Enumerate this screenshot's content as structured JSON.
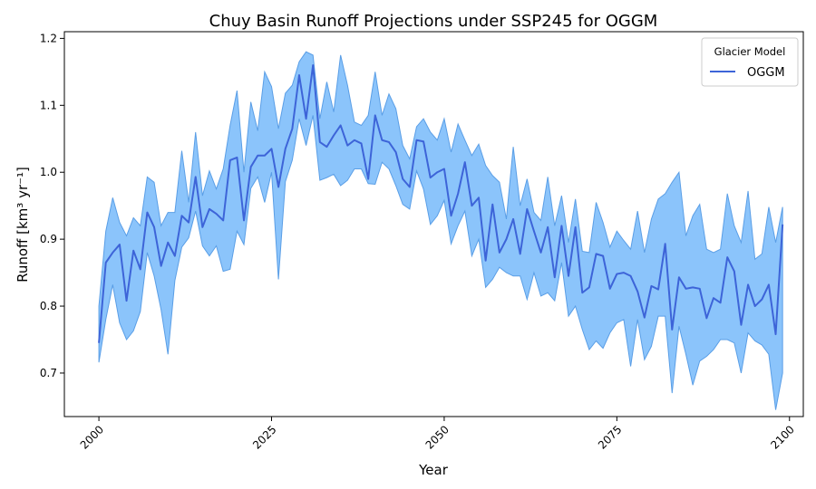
{
  "chart_data": {
    "type": "area",
    "title": "Chuy Basin Runoff Projections under SSP245 for OGGM",
    "xlabel": "Year",
    "ylabel": "Runoff [km³ yr⁻¹]",
    "xlim": [
      1995,
      2102
    ],
    "ylim": [
      0.635,
      1.21
    ],
    "xticks": [
      2000,
      2025,
      2050,
      2075,
      2100
    ],
    "yticks": [
      0.7,
      0.8,
      0.9,
      1.0,
      1.1,
      1.2
    ],
    "ytick_labels": [
      "0.7",
      "0.8",
      "0.9",
      "1.0",
      "1.1",
      "1.2"
    ],
    "grid": false,
    "legend": {
      "title": "Glacier Model",
      "position": "top-right"
    },
    "colors": {
      "line": "#3d64d8",
      "band": "#8bc4fb",
      "band_edge": "#5a9ee6"
    },
    "x": [
      2000,
      2001,
      2002,
      2003,
      2004,
      2005,
      2006,
      2007,
      2008,
      2009,
      2010,
      2011,
      2012,
      2013,
      2014,
      2015,
      2016,
      2017,
      2018,
      2019,
      2020,
      2021,
      2022,
      2023,
      2024,
      2025,
      2026,
      2027,
      2028,
      2029,
      2030,
      2031,
      2032,
      2033,
      2034,
      2035,
      2036,
      2037,
      2038,
      2039,
      2040,
      2041,
      2042,
      2043,
      2044,
      2045,
      2046,
      2047,
      2048,
      2049,
      2050,
      2051,
      2052,
      2053,
      2054,
      2055,
      2056,
      2057,
      2058,
      2059,
      2060,
      2061,
      2062,
      2063,
      2064,
      2065,
      2066,
      2067,
      2068,
      2069,
      2070,
      2071,
      2072,
      2073,
      2074,
      2075,
      2076,
      2077,
      2078,
      2079,
      2080,
      2081,
      2082,
      2083,
      2084,
      2085,
      2086,
      2087,
      2088,
      2089,
      2090,
      2091,
      2092,
      2093,
      2094,
      2095,
      2096,
      2097,
      2098,
      2099
    ],
    "series": [
      {
        "name": "OGGM",
        "values": [
          0.745,
          0.865,
          0.88,
          0.892,
          0.808,
          0.883,
          0.855,
          0.94,
          0.918,
          0.86,
          0.895,
          0.875,
          0.935,
          0.925,
          0.993,
          0.918,
          0.945,
          0.938,
          0.928,
          1.018,
          1.022,
          0.928,
          1.008,
          1.025,
          1.025,
          1.035,
          0.978,
          1.035,
          1.065,
          1.145,
          1.08,
          1.16,
          1.045,
          1.038,
          1.055,
          1.07,
          1.04,
          1.048,
          1.043,
          0.99,
          1.085,
          1.048,
          1.045,
          1.03,
          0.99,
          0.978,
          1.048,
          1.046,
          0.992,
          1.0,
          1.005,
          0.935,
          0.968,
          1.015,
          0.95,
          0.962,
          0.868,
          0.952,
          0.88,
          0.9,
          0.93,
          0.878,
          0.945,
          0.912,
          0.88,
          0.918,
          0.843,
          0.92,
          0.845,
          0.918,
          0.82,
          0.828,
          0.878,
          0.875,
          0.826,
          0.848,
          0.85,
          0.845,
          0.822,
          0.783,
          0.83,
          0.825,
          0.893,
          0.765,
          0.843,
          0.826,
          0.828,
          0.826,
          0.782,
          0.812,
          0.805,
          0.873,
          0.852,
          0.772,
          0.832,
          0.8,
          0.81,
          0.832,
          0.758,
          0.922
        ]
      }
    ],
    "band": {
      "lower": [
        0.716,
        0.78,
        0.832,
        0.775,
        0.75,
        0.763,
        0.792,
        0.88,
        0.845,
        0.795,
        0.728,
        0.838,
        0.888,
        0.902,
        0.942,
        0.89,
        0.875,
        0.89,
        0.852,
        0.855,
        0.912,
        0.892,
        0.976,
        0.993,
        0.955,
        1.0,
        0.84,
        0.986,
        1.018,
        1.08,
        1.04,
        1.085,
        0.988,
        0.992,
        0.997,
        0.98,
        0.988,
        1.005,
        1.005,
        0.983,
        0.982,
        1.015,
        1.005,
        0.98,
        0.952,
        0.945,
        1.002,
        0.975,
        0.922,
        0.935,
        0.958,
        0.893,
        0.92,
        0.942,
        0.875,
        0.9,
        0.828,
        0.84,
        0.858,
        0.85,
        0.845,
        0.845,
        0.81,
        0.85,
        0.815,
        0.82,
        0.808,
        0.865,
        0.785,
        0.8,
        0.765,
        0.735,
        0.748,
        0.737,
        0.76,
        0.775,
        0.78,
        0.71,
        0.78,
        0.72,
        0.74,
        0.785,
        0.785,
        0.67,
        0.77,
        0.728,
        0.682,
        0.718,
        0.725,
        0.735,
        0.75,
        0.75,
        0.745,
        0.7,
        0.76,
        0.748,
        0.742,
        0.728,
        0.645,
        0.7
      ],
      "upper": [
        0.8,
        0.912,
        0.962,
        0.925,
        0.905,
        0.932,
        0.92,
        0.993,
        0.985,
        0.92,
        0.94,
        0.94,
        1.032,
        0.955,
        1.06,
        0.965,
        1.002,
        0.975,
        1.005,
        1.07,
        1.122,
        1.0,
        1.105,
        1.062,
        1.15,
        1.128,
        1.065,
        1.118,
        1.13,
        1.165,
        1.18,
        1.175,
        1.08,
        1.135,
        1.09,
        1.175,
        1.13,
        1.075,
        1.07,
        1.085,
        1.15,
        1.085,
        1.117,
        1.095,
        1.04,
        1.02,
        1.068,
        1.08,
        1.06,
        1.048,
        1.08,
        1.03,
        1.072,
        1.048,
        1.025,
        1.042,
        1.01,
        0.995,
        0.985,
        0.93,
        1.038,
        0.95,
        0.99,
        0.94,
        0.928,
        0.993,
        0.92,
        0.965,
        0.895,
        0.96,
        0.882,
        0.88,
        0.955,
        0.925,
        0.888,
        0.912,
        0.898,
        0.885,
        0.942,
        0.88,
        0.93,
        0.96,
        0.968,
        0.985,
        1.0,
        0.905,
        0.935,
        0.952,
        0.885,
        0.88,
        0.885,
        0.968,
        0.92,
        0.895,
        0.972,
        0.87,
        0.878,
        0.948,
        0.895,
        0.948
      ]
    }
  }
}
